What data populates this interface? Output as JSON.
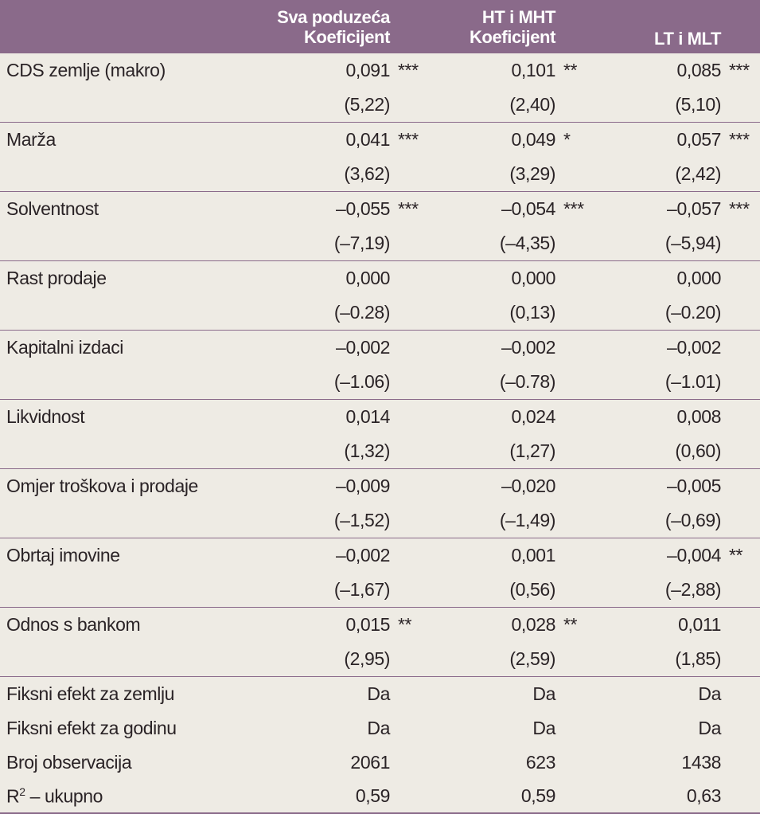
{
  "header": {
    "col1_line1": "Sva poduzeća",
    "col1_line2": "Koeficijent",
    "col2_line1": "HT i MHT",
    "col2_line2": "Koeficijent",
    "col3": "LT i MLT"
  },
  "rows": [
    {
      "label": "CDS zemlje (makro)",
      "c1": "0,091",
      "s1": "***",
      "c2": "0,101",
      "s2": "**",
      "c3": "0,085",
      "s3": "***",
      "t1": "(5,22)",
      "t2": "(2,40)",
      "t3": "(5,10)"
    },
    {
      "label": "Marža",
      "c1": "0,041",
      "s1": "***",
      "c2": "0,049",
      "s2": "*",
      "c3": "0,057",
      "s3": "***",
      "t1": "(3,62)",
      "t2": "(3,29)",
      "t3": "(2,42)"
    },
    {
      "label": "Solventnost",
      "c1": "–0,055",
      "s1": "***",
      "c2": "–0,054",
      "s2": "***",
      "c3": "–0,057",
      "s3": "***",
      "t1": "(–7,19)",
      "t2": "(–4,35)",
      "t3": "(–5,94)"
    },
    {
      "label": "Rast prodaje",
      "c1": "0,000",
      "s1": "",
      "c2": "0,000",
      "s2": "",
      "c3": "0,000",
      "s3": "",
      "t1": "(–0.28)",
      "t2": "(0,13)",
      "t3": "(–0.20)"
    },
    {
      "label": "Kapitalni izdaci",
      "c1": "–0,002",
      "s1": "",
      "c2": "–0,002",
      "s2": "",
      "c3": "–0,002",
      "s3": "",
      "t1": "(–1.06)",
      "t2": "(–0.78)",
      "t3": "(–1.01)"
    },
    {
      "label": "Likvidnost",
      "c1": "0,014",
      "s1": "",
      "c2": "0,024",
      "s2": "",
      "c3": "0,008",
      "s3": "",
      "t1": "(1,32)",
      "t2": "(1,27)",
      "t3": "(0,60)"
    },
    {
      "label": "Omjer troškova i prodaje",
      "c1": "–0,009",
      "s1": "",
      "c2": "–0,020",
      "s2": "",
      "c3": "–0,005",
      "s3": "",
      "t1": "(–1,52)",
      "t2": "(–1,49)",
      "t3": "(–0,69)"
    },
    {
      "label": "Obrtaj imovine",
      "c1": "–0,002",
      "s1": "",
      "c2": "0,001",
      "s2": "",
      "c3": "–0,004",
      "s3": "**",
      "t1": "(–1,67)",
      "t2": "(0,56)",
      "t3": "(–2,88)"
    },
    {
      "label": "Odnos s bankom",
      "c1": "0,015",
      "s1": "**",
      "c2": "0,028",
      "s2": "**",
      "c3": "0,011",
      "s3": "",
      "t1": "(2,95)",
      "t2": "(2,59)",
      "t3": "(1,85)"
    }
  ],
  "footer_rows": [
    {
      "label": "Fiksni efekt za zemlju",
      "c1": "Da",
      "c2": "Da",
      "c3": "Da"
    },
    {
      "label": "Fiksni efekt za godinu",
      "c1": "Da",
      "c2": "Da",
      "c3": "Da"
    },
    {
      "label": "Broj observacija",
      "c1": "2061",
      "c2": "623",
      "c3": "1438"
    },
    {
      "label_base": "R",
      "label_sup": "2",
      "label_rest": " – ukupno",
      "c1": "0,59",
      "c2": "0,59",
      "c3": "0,63"
    }
  ]
}
